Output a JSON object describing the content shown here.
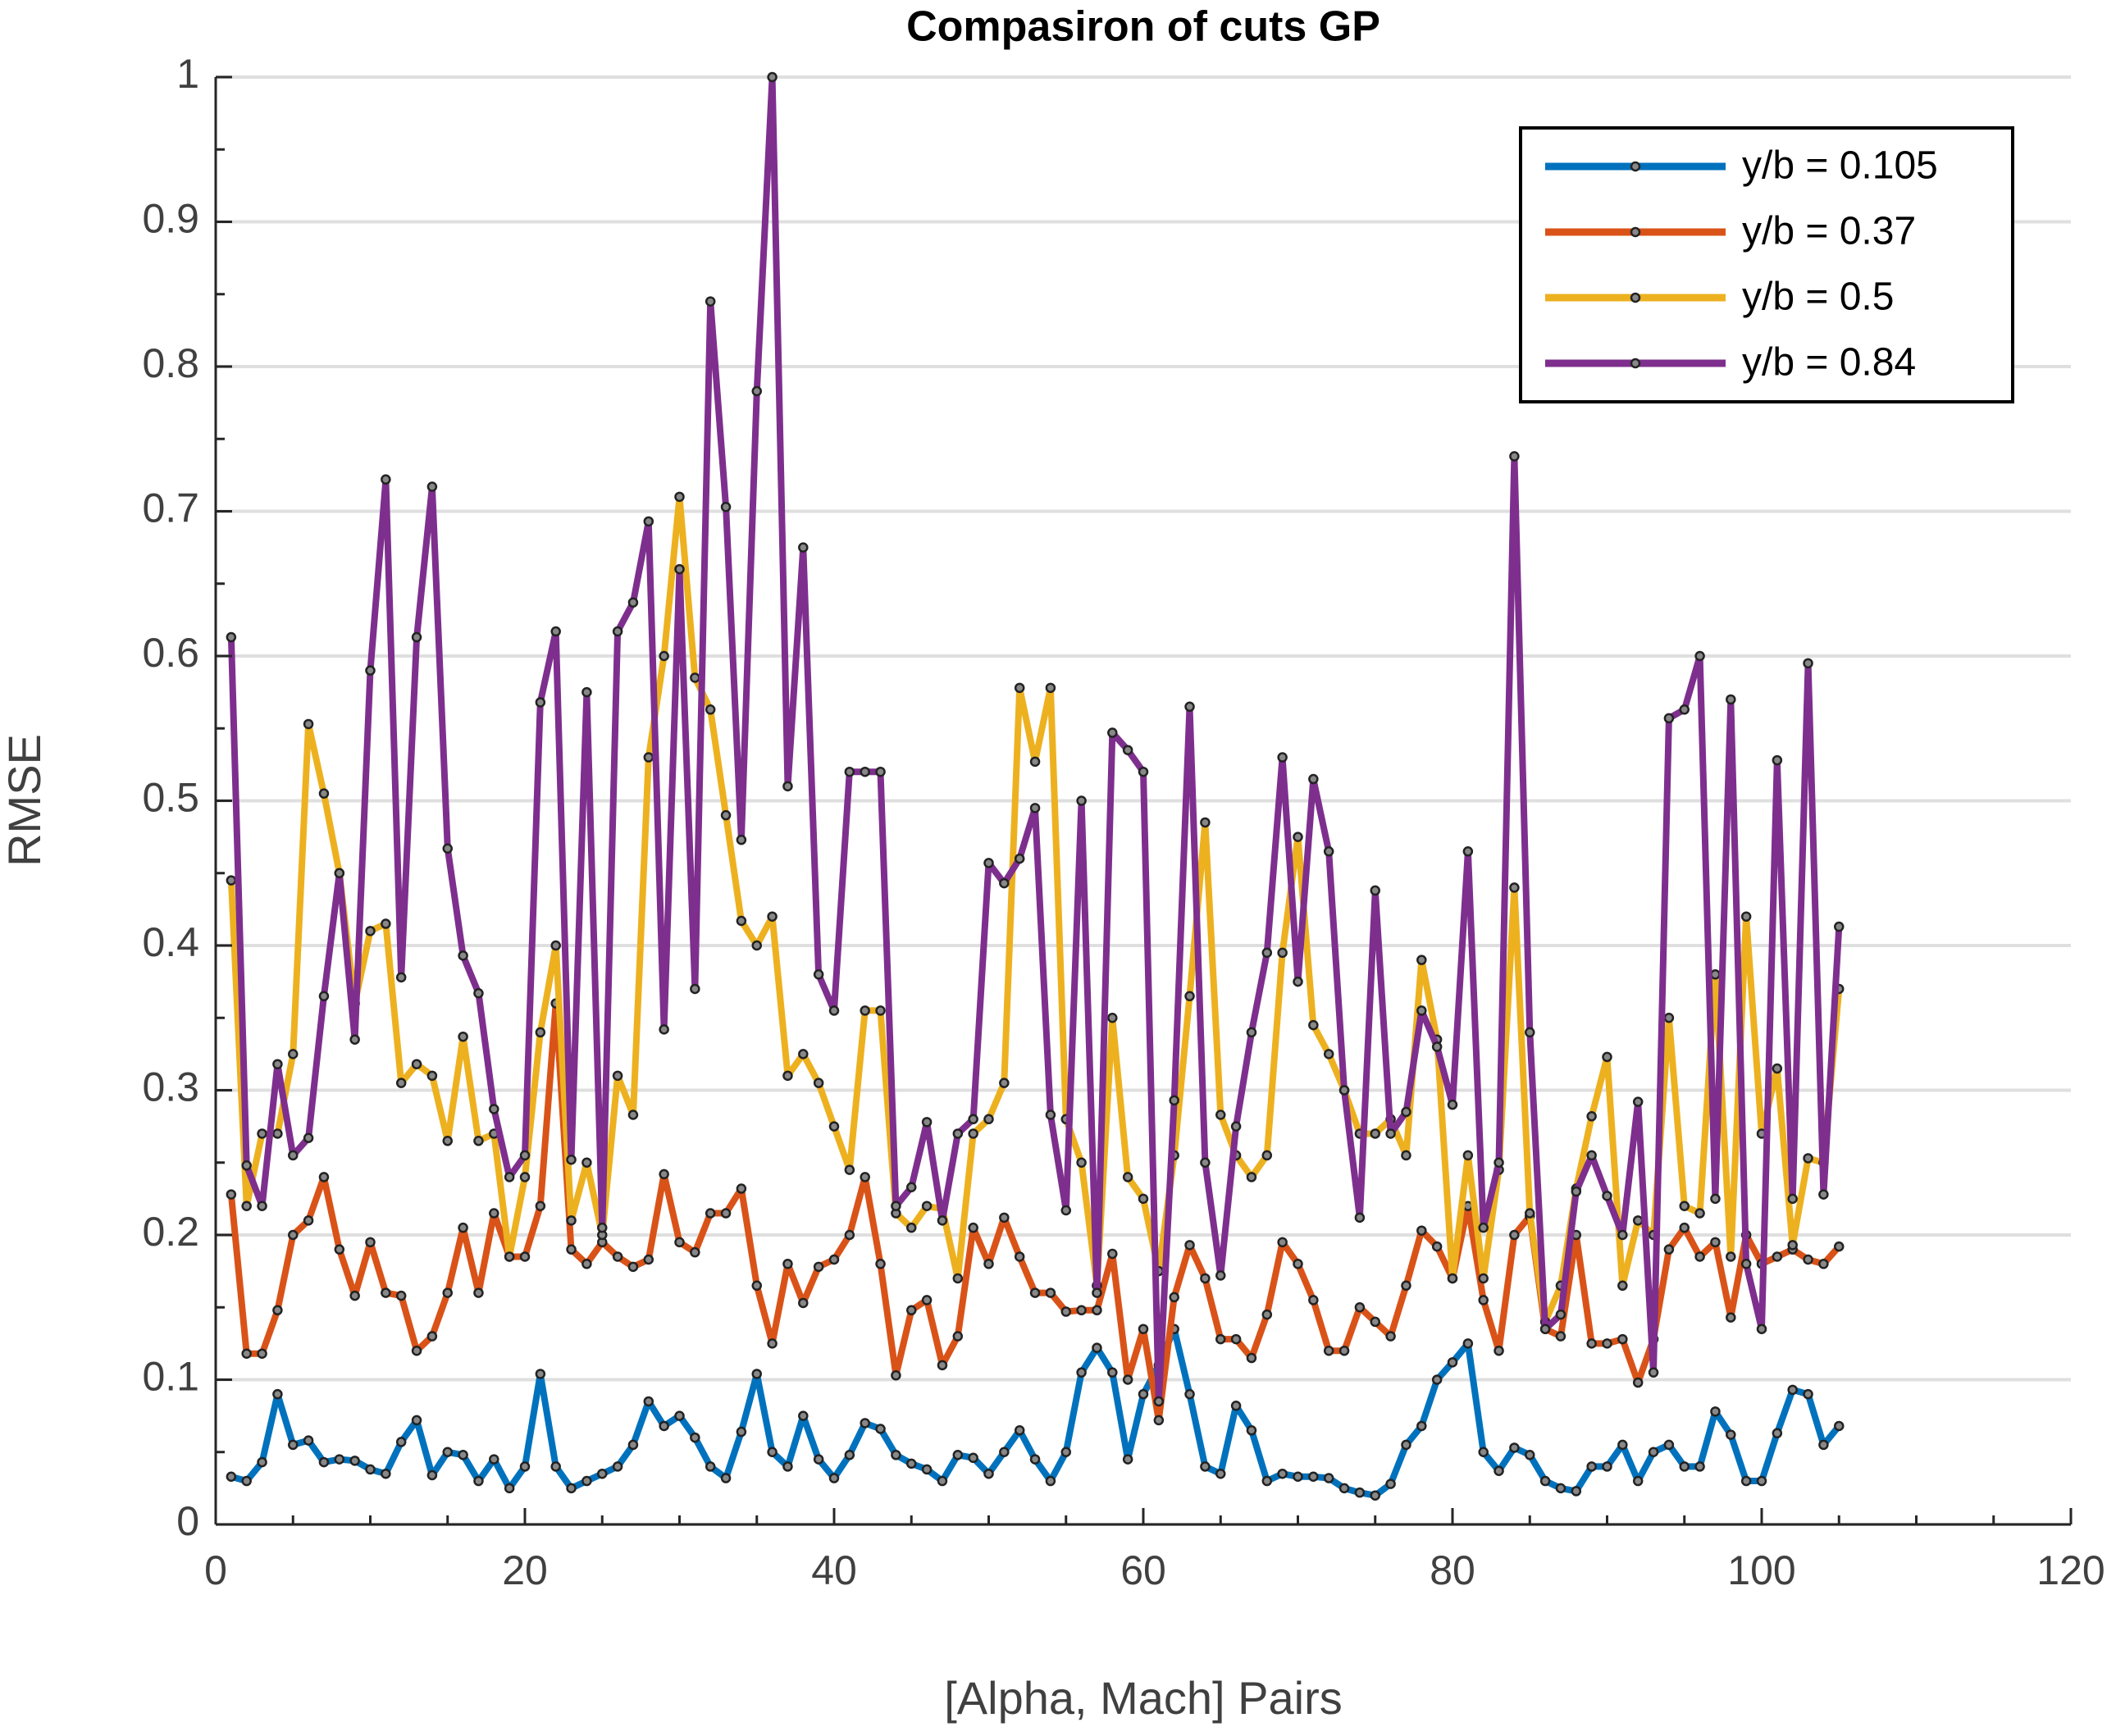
{
  "chart_data": {
    "type": "line",
    "title": "Compasiron of cuts GP",
    "x_label": "[Alpha, Mach] Pairs",
    "y_label": "RMSE",
    "xlim": [
      0,
      120
    ],
    "xticks": [
      0,
      20,
      40,
      60,
      80,
      100,
      120
    ],
    "ylim": [
      0,
      1
    ],
    "yticks": [
      0,
      0.1,
      0.2,
      0.3,
      0.4,
      0.5,
      0.6,
      0.7,
      0.8,
      0.9,
      1
    ],
    "grid": true,
    "legend": "northeast",
    "x": [
      1,
      2,
      3,
      4,
      5,
      6,
      7,
      8,
      9,
      10,
      11,
      12,
      13,
      14,
      15,
      16,
      17,
      18,
      19,
      20,
      21,
      22,
      23,
      24,
      25,
      26,
      27,
      28,
      29,
      30,
      31,
      32,
      33,
      34,
      35,
      36,
      37,
      38,
      39,
      40,
      41,
      42,
      43,
      44,
      45,
      46,
      47,
      48,
      49,
      50,
      51,
      52,
      53,
      54,
      55,
      56,
      57,
      58,
      59,
      60,
      61,
      62,
      63,
      64,
      65,
      66,
      67,
      68,
      69,
      70,
      71,
      72,
      73,
      74,
      75,
      76,
      77,
      78,
      79,
      80,
      81,
      82,
      83,
      84,
      85,
      86,
      87,
      88,
      89,
      90,
      91,
      92,
      93,
      94,
      95,
      96,
      97,
      98,
      99,
      100,
      101,
      102,
      103,
      104,
      105
    ],
    "series": [
      {
        "name": "y/b = 0.105",
        "color": "#0072bd",
        "values": [
          0.033,
          0.03,
          0.043,
          0.09,
          0.055,
          0.058,
          0.043,
          0.045,
          0.044,
          0.038,
          0.035,
          0.057,
          0.072,
          0.034,
          0.05,
          0.048,
          0.03,
          0.045,
          0.025,
          0.04,
          0.104,
          0.04,
          0.025,
          0.03,
          0.035,
          0.04,
          0.055,
          0.085,
          0.068,
          0.075,
          0.06,
          0.04,
          0.032,
          0.064,
          0.104,
          0.05,
          0.04,
          0.075,
          0.045,
          0.032,
          0.048,
          0.07,
          0.066,
          0.048,
          0.042,
          0.038,
          0.03,
          0.048,
          0.046,
          0.035,
          0.05,
          0.065,
          0.045,
          0.03,
          0.05,
          0.105,
          0.122,
          0.105,
          0.045,
          0.09,
          0.11,
          0.135,
          0.09,
          0.04,
          0.035,
          0.082,
          0.065,
          0.03,
          0.035,
          0.033,
          0.033,
          0.032,
          0.025,
          0.022,
          0.02,
          0.028,
          0.055,
          0.068,
          0.1,
          0.112,
          0.125,
          0.05,
          0.037,
          0.053,
          0.048,
          0.03,
          0.025,
          0.023,
          0.04,
          0.04,
          0.055,
          0.03,
          0.05,
          0.055,
          0.04,
          0.04,
          0.078,
          0.062,
          0.03,
          0.03,
          0.063,
          0.093,
          0.09,
          0.055,
          0.068
        ]
      },
      {
        "name": "y/b = 0.37",
        "color": "#d95319",
        "values": [
          0.228,
          0.118,
          0.118,
          0.148,
          0.2,
          0.21,
          0.24,
          0.19,
          0.158,
          0.195,
          0.16,
          0.158,
          0.12,
          0.13,
          0.16,
          0.205,
          0.16,
          0.215,
          0.185,
          0.185,
          0.22,
          0.36,
          0.19,
          0.18,
          0.195,
          0.185,
          0.178,
          0.183,
          0.242,
          0.195,
          0.188,
          0.215,
          0.215,
          0.232,
          0.165,
          0.125,
          0.18,
          0.153,
          0.178,
          0.183,
          0.2,
          0.24,
          0.18,
          0.103,
          0.148,
          0.155,
          0.11,
          0.13,
          0.205,
          0.18,
          0.212,
          0.185,
          0.16,
          0.16,
          0.147,
          0.148,
          0.148,
          0.187,
          0.1,
          0.135,
          0.072,
          0.157,
          0.193,
          0.17,
          0.128,
          0.128,
          0.115,
          0.145,
          0.195,
          0.18,
          0.155,
          0.12,
          0.12,
          0.15,
          0.14,
          0.13,
          0.165,
          0.203,
          0.192,
          0.17,
          0.22,
          0.155,
          0.12,
          0.2,
          0.213,
          0.135,
          0.13,
          0.2,
          0.125,
          0.125,
          0.128,
          0.098,
          0.128,
          0.19,
          0.205,
          0.185,
          0.195,
          0.143,
          0.2,
          0.18,
          0.185,
          0.19,
          0.183,
          0.18,
          0.192
        ]
      },
      {
        "name": "y/b = 0.5",
        "color": "#edb120",
        "values": [
          0.445,
          0.22,
          0.27,
          0.27,
          0.325,
          0.553,
          0.505,
          0.45,
          0.36,
          0.41,
          0.415,
          0.305,
          0.318,
          0.31,
          0.265,
          0.337,
          0.265,
          0.27,
          0.185,
          0.24,
          0.34,
          0.4,
          0.21,
          0.25,
          0.2,
          0.31,
          0.283,
          0.53,
          0.6,
          0.71,
          0.585,
          0.563,
          0.49,
          0.417,
          0.4,
          0.42,
          0.31,
          0.325,
          0.305,
          0.275,
          0.245,
          0.355,
          0.355,
          0.215,
          0.205,
          0.22,
          0.218,
          0.17,
          0.27,
          0.28,
          0.305,
          0.578,
          0.527,
          0.578,
          0.28,
          0.25,
          0.165,
          0.35,
          0.24,
          0.225,
          0.175,
          0.255,
          0.365,
          0.485,
          0.283,
          0.255,
          0.24,
          0.255,
          0.395,
          0.475,
          0.345,
          0.325,
          0.3,
          0.27,
          0.27,
          0.28,
          0.255,
          0.39,
          0.335,
          0.17,
          0.255,
          0.17,
          0.245,
          0.44,
          0.215,
          0.14,
          0.165,
          0.232,
          0.282,
          0.323,
          0.165,
          0.21,
          0.2,
          0.35,
          0.22,
          0.215,
          0.38,
          0.185,
          0.42,
          0.27,
          0.315,
          0.193,
          0.253,
          0.25,
          0.37
        ]
      },
      {
        "name": "y/b = 0.84",
        "color": "#7e2f8e",
        "values": [
          0.613,
          0.248,
          0.22,
          0.318,
          0.255,
          0.267,
          0.365,
          0.45,
          0.335,
          0.59,
          0.722,
          0.378,
          0.613,
          0.717,
          0.467,
          0.393,
          0.367,
          0.287,
          0.24,
          0.255,
          0.568,
          0.617,
          0.252,
          0.575,
          0.205,
          0.617,
          0.637,
          0.693,
          0.342,
          0.66,
          0.37,
          0.845,
          0.703,
          0.473,
          0.783,
          1.0,
          0.51,
          0.675,
          0.38,
          0.355,
          0.52,
          0.52,
          0.52,
          0.22,
          0.233,
          0.278,
          0.21,
          0.27,
          0.28,
          0.457,
          0.443,
          0.46,
          0.495,
          0.283,
          0.217,
          0.5,
          0.16,
          0.547,
          0.535,
          0.52,
          0.085,
          0.293,
          0.565,
          0.25,
          0.172,
          0.275,
          0.34,
          0.395,
          0.53,
          0.375,
          0.515,
          0.465,
          0.3,
          0.212,
          0.438,
          0.27,
          0.285,
          0.355,
          0.33,
          0.29,
          0.465,
          0.205,
          0.25,
          0.738,
          0.34,
          0.135,
          0.145,
          0.23,
          0.255,
          0.227,
          0.2,
          0.292,
          0.105,
          0.557,
          0.563,
          0.6,
          0.225,
          0.57,
          0.18,
          0.135,
          0.528,
          0.225,
          0.595,
          0.228,
          0.413
        ]
      }
    ]
  }
}
